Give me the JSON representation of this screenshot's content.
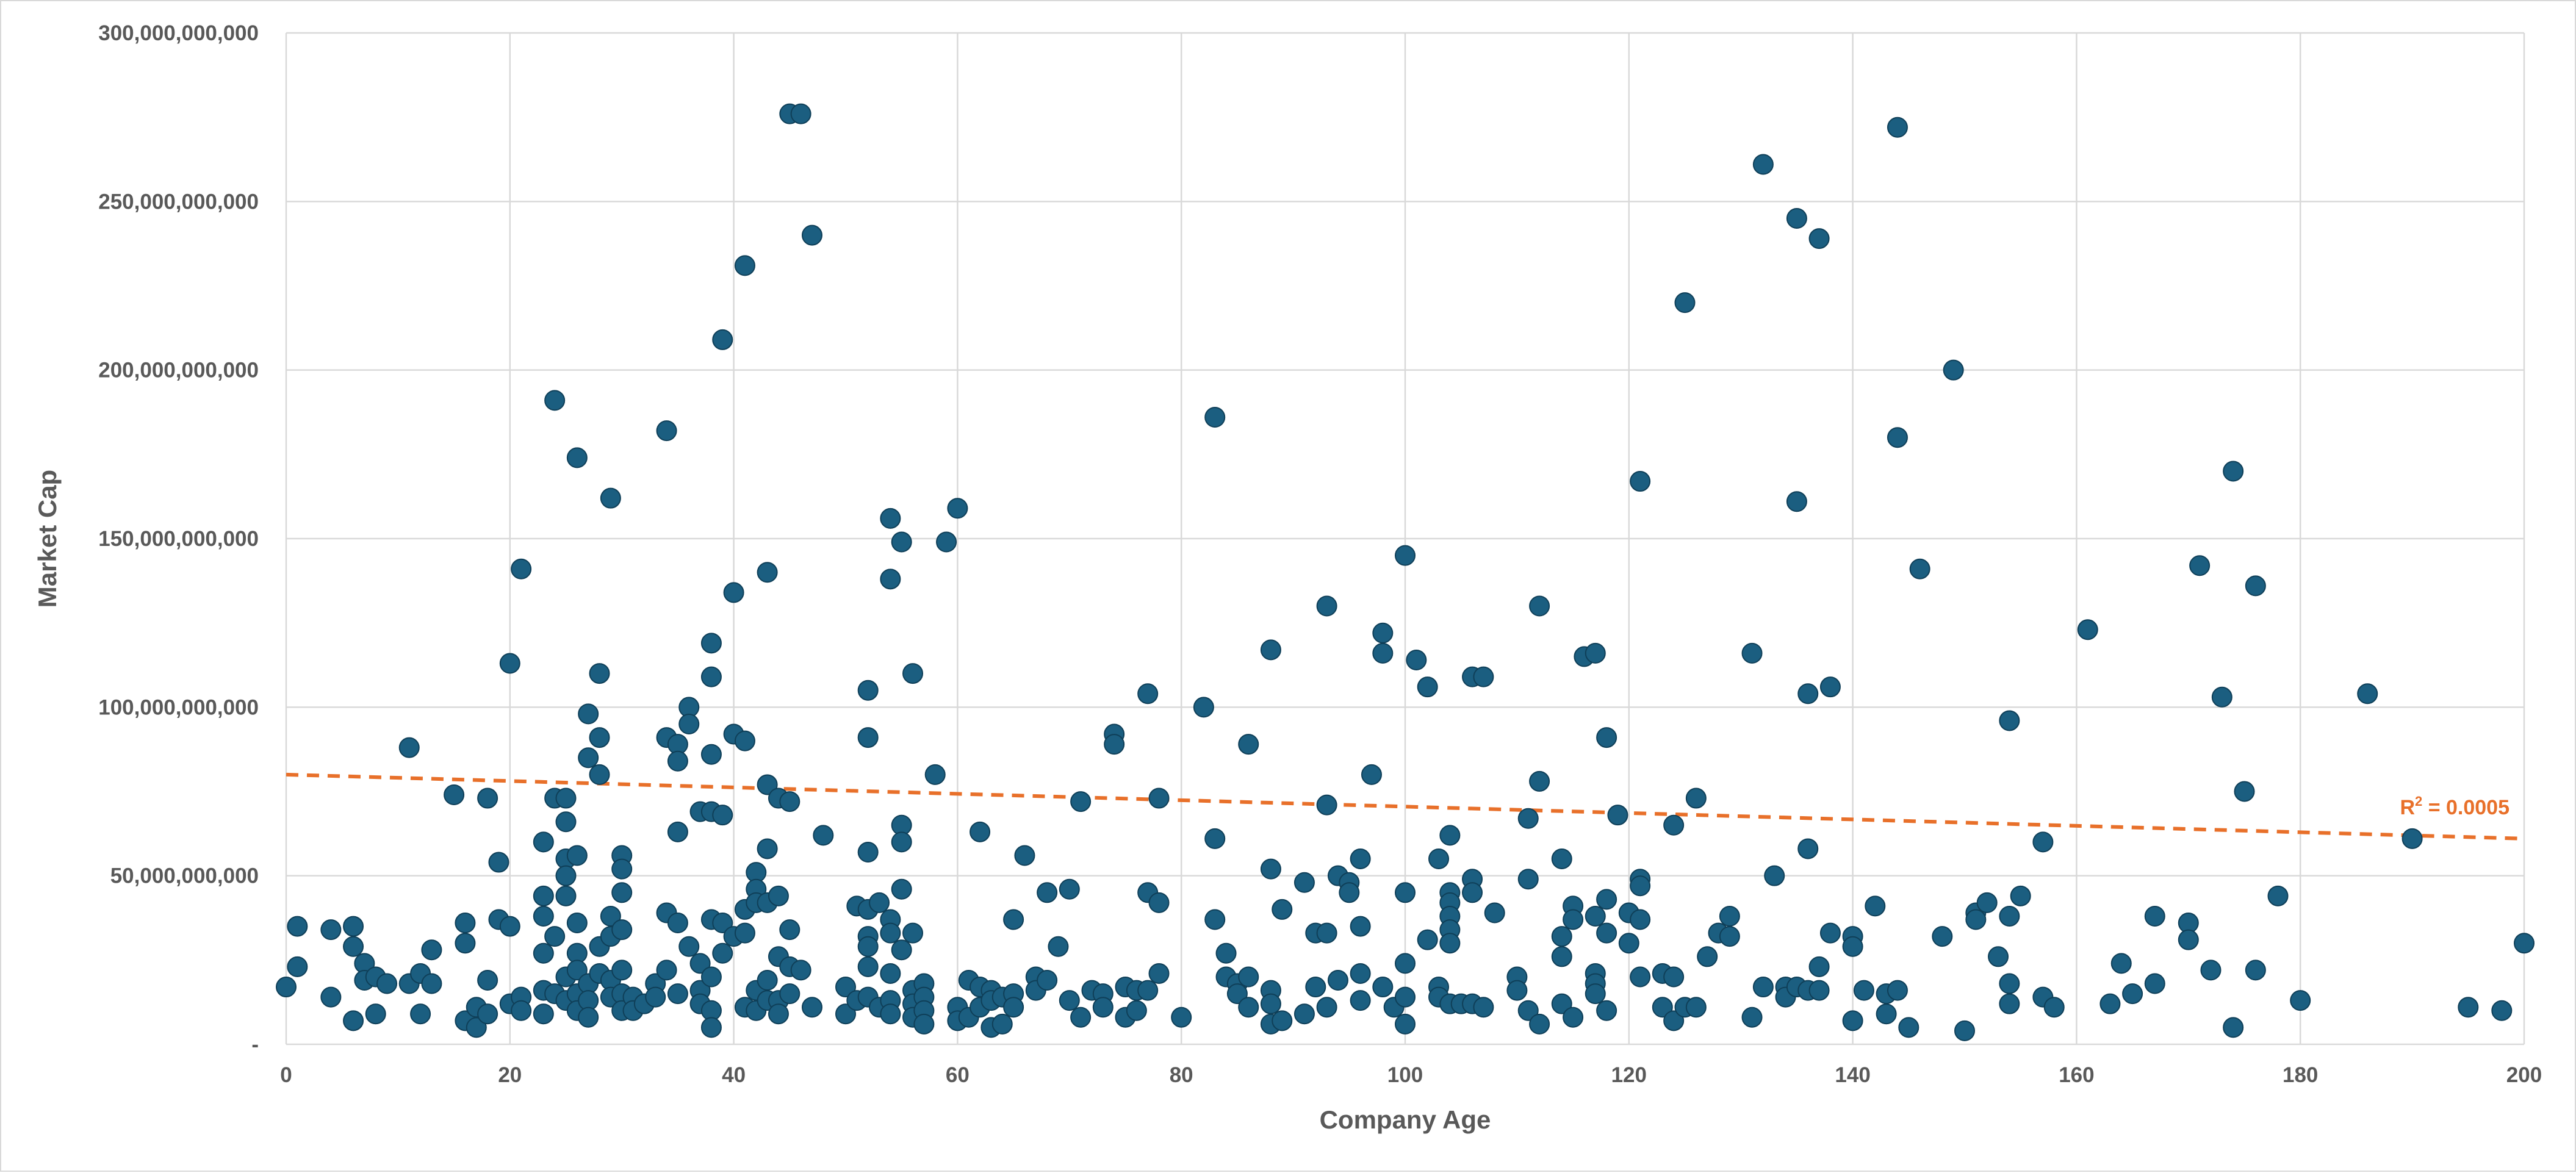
{
  "chart_data": {
    "type": "scatter",
    "title": "",
    "xlabel": "Company Age",
    "ylabel": "Market Cap",
    "xlim": [
      0,
      200
    ],
    "ylim": [
      0,
      300000000000
    ],
    "grid": true,
    "x_ticks": [
      0,
      20,
      40,
      60,
      80,
      100,
      120,
      140,
      160,
      180,
      200
    ],
    "y_ticks": [
      0,
      50000000000,
      100000000000,
      150000000000,
      200000000000,
      250000000000,
      300000000000
    ],
    "y_tick_labels": [
      "-",
      "50,000,000,000",
      "100,000,000,000",
      "150,000,000,000",
      "200,000,000,000",
      "250,000,000,000",
      "300,000,000,000"
    ],
    "marker_color": "#1b5e80",
    "trendline": {
      "type": "linear",
      "color": "#e8702a",
      "style": "dashed",
      "start": [
        0,
        80000000000
      ],
      "end": [
        200,
        61000000000
      ],
      "label_prefix": "R",
      "label_sup": "2",
      "label_suffix": " = 0.0005"
    },
    "points": [
      [
        0,
        17
      ],
      [
        1,
        35
      ],
      [
        1,
        23
      ],
      [
        4,
        34
      ],
      [
        4,
        14
      ],
      [
        6,
        35
      ],
      [
        6,
        29
      ],
      [
        6,
        7
      ],
      [
        7,
        24
      ],
      [
        7,
        19
      ],
      [
        8,
        20
      ],
      [
        8,
        9
      ],
      [
        9,
        18
      ],
      [
        11,
        88
      ],
      [
        11,
        18
      ],
      [
        12,
        9
      ],
      [
        12,
        21
      ],
      [
        13,
        28
      ],
      [
        13,
        18
      ],
      [
        15,
        74
      ],
      [
        16,
        36
      ],
      [
        16,
        30
      ],
      [
        16,
        7
      ],
      [
        17,
        11
      ],
      [
        17,
        5
      ],
      [
        18,
        73
      ],
      [
        18,
        19
      ],
      [
        18,
        9
      ],
      [
        19,
        54
      ],
      [
        19,
        37
      ],
      [
        20,
        113
      ],
      [
        20,
        35
      ],
      [
        20,
        12
      ],
      [
        21,
        141
      ],
      [
        21,
        14
      ],
      [
        21,
        10
      ],
      [
        23,
        60
      ],
      [
        23,
        44
      ],
      [
        23,
        38
      ],
      [
        23,
        27
      ],
      [
        23,
        16
      ],
      [
        23,
        9
      ],
      [
        24,
        191
      ],
      [
        24,
        73
      ],
      [
        24,
        32
      ],
      [
        24,
        15
      ],
      [
        25,
        73
      ],
      [
        25,
        66
      ],
      [
        25,
        55
      ],
      [
        25,
        50
      ],
      [
        25,
        44
      ],
      [
        25,
        20
      ],
      [
        25,
        13
      ],
      [
        26,
        174
      ],
      [
        26,
        56
      ],
      [
        26,
        36
      ],
      [
        26,
        27
      ],
      [
        26,
        22
      ],
      [
        26,
        15
      ],
      [
        26,
        10
      ],
      [
        27,
        98
      ],
      [
        27,
        85
      ],
      [
        27,
        18
      ],
      [
        27,
        13
      ],
      [
        27,
        8
      ],
      [
        28,
        110
      ],
      [
        28,
        91
      ],
      [
        28,
        80
      ],
      [
        28,
        29
      ],
      [
        28,
        21
      ],
      [
        29,
        162
      ],
      [
        29,
        38
      ],
      [
        29,
        32
      ],
      [
        29,
        19
      ],
      [
        29,
        14
      ],
      [
        30,
        56
      ],
      [
        30,
        52
      ],
      [
        30,
        45
      ],
      [
        30,
        34
      ],
      [
        30,
        22
      ],
      [
        30,
        15
      ],
      [
        30,
        10
      ],
      [
        31,
        14
      ],
      [
        31,
        10
      ],
      [
        32,
        12
      ],
      [
        33,
        18
      ],
      [
        33,
        14
      ],
      [
        34,
        182
      ],
      [
        34,
        91
      ],
      [
        34,
        39
      ],
      [
        34,
        22
      ],
      [
        35,
        89
      ],
      [
        35,
        84
      ],
      [
        35,
        63
      ],
      [
        35,
        36
      ],
      [
        35,
        15
      ],
      [
        36,
        100
      ],
      [
        36,
        95
      ],
      [
        36,
        29
      ],
      [
        37,
        69
      ],
      [
        37,
        24
      ],
      [
        37,
        16
      ],
      [
        37,
        12
      ],
      [
        38,
        119
      ],
      [
        38,
        109
      ],
      [
        38,
        86
      ],
      [
        38,
        69
      ],
      [
        38,
        37
      ],
      [
        38,
        20
      ],
      [
        38,
        10
      ],
      [
        38,
        5
      ],
      [
        39,
        209
      ],
      [
        39,
        68
      ],
      [
        39,
        36
      ],
      [
        39,
        27
      ],
      [
        40,
        134
      ],
      [
        40,
        92
      ],
      [
        40,
        32
      ],
      [
        41,
        231
      ],
      [
        41,
        90
      ],
      [
        41,
        40
      ],
      [
        41,
        33
      ],
      [
        41,
        11
      ],
      [
        42,
        51
      ],
      [
        42,
        46
      ],
      [
        42,
        42
      ],
      [
        42,
        16
      ],
      [
        42,
        10
      ],
      [
        43,
        140
      ],
      [
        43,
        77
      ],
      [
        43,
        58
      ],
      [
        43,
        42
      ],
      [
        43,
        19
      ],
      [
        43,
        13
      ],
      [
        44,
        73
      ],
      [
        44,
        44
      ],
      [
        44,
        26
      ],
      [
        44,
        13
      ],
      [
        44,
        9
      ],
      [
        45,
        276
      ],
      [
        45,
        72
      ],
      [
        45,
        34
      ],
      [
        45,
        23
      ],
      [
        45,
        15
      ],
      [
        46,
        276
      ],
      [
        46,
        22
      ],
      [
        47,
        240
      ],
      [
        47,
        11
      ],
      [
        48,
        62
      ],
      [
        50,
        17
      ],
      [
        50,
        9
      ],
      [
        51,
        41
      ],
      [
        51,
        13
      ],
      [
        52,
        105
      ],
      [
        52,
        91
      ],
      [
        52,
        57
      ],
      [
        52,
        40
      ],
      [
        52,
        32
      ],
      [
        52,
        29
      ],
      [
        52,
        23
      ],
      [
        52,
        14
      ],
      [
        53,
        42
      ],
      [
        53,
        11
      ],
      [
        54,
        156
      ],
      [
        54,
        138
      ],
      [
        54,
        37
      ],
      [
        54,
        33
      ],
      [
        54,
        21
      ],
      [
        54,
        13
      ],
      [
        54,
        9
      ],
      [
        55,
        149
      ],
      [
        55,
        65
      ],
      [
        55,
        60
      ],
      [
        55,
        46
      ],
      [
        55,
        28
      ],
      [
        56,
        110
      ],
      [
        56,
        33
      ],
      [
        56,
        16
      ],
      [
        56,
        12
      ],
      [
        56,
        8
      ],
      [
        57,
        18
      ],
      [
        57,
        14
      ],
      [
        57,
        10
      ],
      [
        57,
        6
      ],
      [
        58,
        80
      ],
      [
        59,
        149
      ],
      [
        60,
        159
      ],
      [
        60,
        11
      ],
      [
        60,
        7
      ],
      [
        61,
        19
      ],
      [
        61,
        8
      ],
      [
        62,
        63
      ],
      [
        62,
        17
      ],
      [
        62,
        11
      ],
      [
        63,
        16
      ],
      [
        63,
        13
      ],
      [
        63,
        5
      ],
      [
        64,
        14
      ],
      [
        64,
        6
      ],
      [
        65,
        37
      ],
      [
        65,
        15
      ],
      [
        65,
        11
      ],
      [
        66,
        56
      ],
      [
        67,
        20
      ],
      [
        67,
        16
      ],
      [
        68,
        45
      ],
      [
        68,
        19
      ],
      [
        69,
        29
      ],
      [
        70,
        46
      ],
      [
        70,
        13
      ],
      [
        71,
        72
      ],
      [
        71,
        8
      ],
      [
        72,
        16
      ],
      [
        73,
        15
      ],
      [
        73,
        11
      ],
      [
        74,
        92
      ],
      [
        74,
        89
      ],
      [
        75,
        17
      ],
      [
        75,
        8
      ],
      [
        76,
        16
      ],
      [
        76,
        10
      ],
      [
        77,
        104
      ],
      [
        77,
        45
      ],
      [
        77,
        16
      ],
      [
        78,
        73
      ],
      [
        78,
        42
      ],
      [
        78,
        21
      ],
      [
        80,
        8
      ],
      [
        82,
        100
      ],
      [
        83,
        186
      ],
      [
        83,
        61
      ],
      [
        83,
        37
      ],
      [
        84,
        27
      ],
      [
        84,
        20
      ],
      [
        85,
        18
      ],
      [
        85,
        15
      ],
      [
        86,
        89
      ],
      [
        86,
        20
      ],
      [
        86,
        11
      ],
      [
        88,
        117
      ],
      [
        88,
        52
      ],
      [
        88,
        16
      ],
      [
        88,
        12
      ],
      [
        88,
        6
      ],
      [
        89,
        40
      ],
      [
        89,
        7
      ],
      [
        91,
        48
      ],
      [
        91,
        9
      ],
      [
        92,
        33
      ],
      [
        92,
        17
      ],
      [
        93,
        130
      ],
      [
        93,
        71
      ],
      [
        93,
        33
      ],
      [
        93,
        11
      ],
      [
        94,
        50
      ],
      [
        94,
        19
      ],
      [
        95,
        48
      ],
      [
        95,
        45
      ],
      [
        96,
        55
      ],
      [
        96,
        35
      ],
      [
        96,
        21
      ],
      [
        96,
        13
      ],
      [
        97,
        80
      ],
      [
        98,
        122
      ],
      [
        98,
        116
      ],
      [
        98,
        17
      ],
      [
        99,
        11
      ],
      [
        100,
        145
      ],
      [
        100,
        45
      ],
      [
        100,
        24
      ],
      [
        100,
        14
      ],
      [
        100,
        6
      ],
      [
        101,
        114
      ],
      [
        102,
        106
      ],
      [
        102,
        31
      ],
      [
        103,
        55
      ],
      [
        103,
        17
      ],
      [
        103,
        14
      ],
      [
        104,
        62
      ],
      [
        104,
        45
      ],
      [
        104,
        42
      ],
      [
        104,
        38
      ],
      [
        104,
        34
      ],
      [
        104,
        30
      ],
      [
        104,
        12
      ],
      [
        105,
        12
      ],
      [
        106,
        109
      ],
      [
        106,
        49
      ],
      [
        106,
        45
      ],
      [
        106,
        12
      ],
      [
        107,
        109
      ],
      [
        107,
        11
      ],
      [
        108,
        39
      ],
      [
        110,
        20
      ],
      [
        110,
        16
      ],
      [
        111,
        67
      ],
      [
        111,
        49
      ],
      [
        111,
        10
      ],
      [
        112,
        130
      ],
      [
        112,
        78
      ],
      [
        112,
        6
      ],
      [
        114,
        55
      ],
      [
        114,
        32
      ],
      [
        114,
        26
      ],
      [
        114,
        12
      ],
      [
        115,
        41
      ],
      [
        115,
        37
      ],
      [
        115,
        8
      ],
      [
        116,
        115
      ],
      [
        117,
        116
      ],
      [
        117,
        38
      ],
      [
        117,
        21
      ],
      [
        117,
        18
      ],
      [
        117,
        15
      ],
      [
        118,
        91
      ],
      [
        118,
        43
      ],
      [
        118,
        33
      ],
      [
        118,
        10
      ],
      [
        119,
        68
      ],
      [
        120,
        39
      ],
      [
        120,
        30
      ],
      [
        121,
        167
      ],
      [
        121,
        49
      ],
      [
        121,
        47
      ],
      [
        121,
        37
      ],
      [
        121,
        20
      ],
      [
        123,
        21
      ],
      [
        123,
        11
      ],
      [
        124,
        65
      ],
      [
        124,
        20
      ],
      [
        124,
        7
      ],
      [
        125,
        220
      ],
      [
        125,
        11
      ],
      [
        126,
        73
      ],
      [
        126,
        11
      ],
      [
        127,
        26
      ],
      [
        128,
        33
      ],
      [
        129,
        38
      ],
      [
        129,
        32
      ],
      [
        131,
        116
      ],
      [
        131,
        8
      ],
      [
        132,
        261
      ],
      [
        132,
        17
      ],
      [
        133,
        50
      ],
      [
        134,
        17
      ],
      [
        134,
        14
      ],
      [
        135,
        245
      ],
      [
        135,
        161
      ],
      [
        135,
        17
      ],
      [
        136,
        104
      ],
      [
        136,
        58
      ],
      [
        136,
        16
      ],
      [
        137,
        239
      ],
      [
        137,
        23
      ],
      [
        137,
        16
      ],
      [
        138,
        106
      ],
      [
        138,
        33
      ],
      [
        140,
        32
      ],
      [
        140,
        29
      ],
      [
        140,
        7
      ],
      [
        141,
        16
      ],
      [
        142,
        41
      ],
      [
        143,
        15
      ],
      [
        143,
        9
      ],
      [
        144,
        272
      ],
      [
        144,
        180
      ],
      [
        144,
        16
      ],
      [
        145,
        5
      ],
      [
        146,
        141
      ],
      [
        148,
        32
      ],
      [
        149,
        200
      ],
      [
        150,
        4
      ],
      [
        151,
        39
      ],
      [
        151,
        37
      ],
      [
        152,
        42
      ],
      [
        153,
        26
      ],
      [
        154,
        96
      ],
      [
        154,
        38
      ],
      [
        154,
        18
      ],
      [
        154,
        12
      ],
      [
        155,
        44
      ],
      [
        157,
        60
      ],
      [
        157,
        14
      ],
      [
        158,
        11
      ],
      [
        161,
        123
      ],
      [
        163,
        12
      ],
      [
        164,
        24
      ],
      [
        165,
        15
      ],
      [
        167,
        38
      ],
      [
        167,
        18
      ],
      [
        170,
        36
      ],
      [
        170,
        31
      ],
      [
        171,
        142
      ],
      [
        172,
        22
      ],
      [
        173,
        103
      ],
      [
        174,
        170
      ],
      [
        174,
        5
      ],
      [
        175,
        75
      ],
      [
        176,
        136
      ],
      [
        176,
        22
      ],
      [
        178,
        44
      ],
      [
        180,
        13
      ],
      [
        186,
        104
      ],
      [
        190,
        61
      ],
      [
        195,
        11
      ],
      [
        198,
        10
      ],
      [
        200,
        30
      ]
    ]
  }
}
